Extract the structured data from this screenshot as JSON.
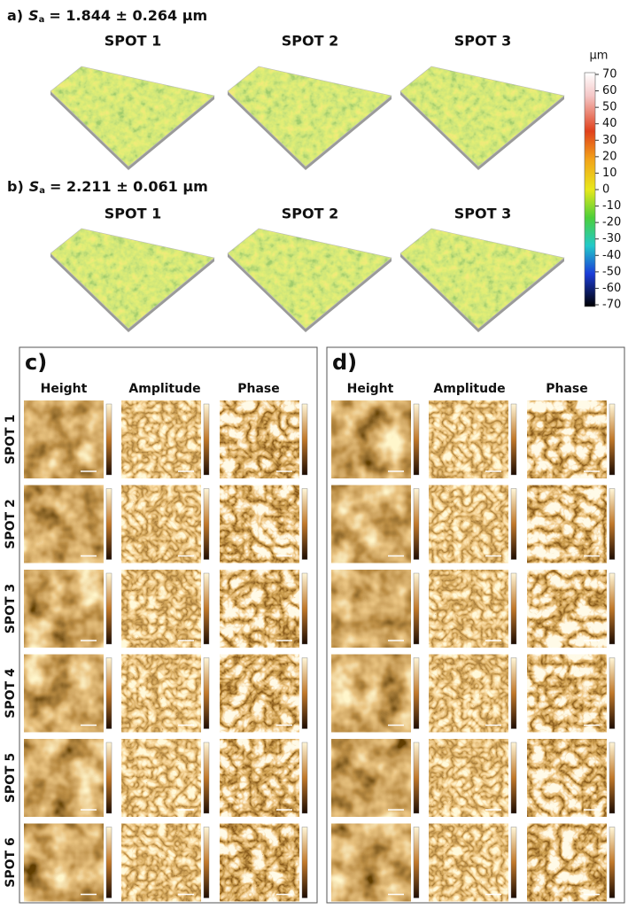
{
  "panel_a": {
    "label": "a)",
    "sa_symbol": "S",
    "sa_sub": "a",
    "sa_value": "= 1.844 ± 0.264 µm",
    "spots": [
      "SPOT 1",
      "SPOT 2",
      "SPOT 3"
    ]
  },
  "panel_b": {
    "label": "b)",
    "sa_symbol": "S",
    "sa_sub": "a",
    "sa_value": "= 2.211 ± 0.061 µm",
    "spots": [
      "SPOT 1",
      "SPOT 2",
      "SPOT 3"
    ]
  },
  "colorbar": {
    "unit": "µm",
    "ticks": [
      "70",
      "60",
      "50",
      "40",
      "30",
      "20",
      "10",
      "0",
      "-10",
      "-20",
      "-30",
      "-40",
      "-50",
      "-60",
      "-70"
    ]
  },
  "panel_c": {
    "label": "c)",
    "columns": [
      "Height",
      "Amplitude",
      "Phase"
    ],
    "rows": [
      "SPOT 1",
      "SPOT 2",
      "SPOT 3",
      "SPOT 4",
      "SPOT 5",
      "SPOT 6"
    ]
  },
  "panel_d": {
    "label": "d)",
    "columns": [
      "Height",
      "Amplitude",
      "Phase"
    ]
  }
}
